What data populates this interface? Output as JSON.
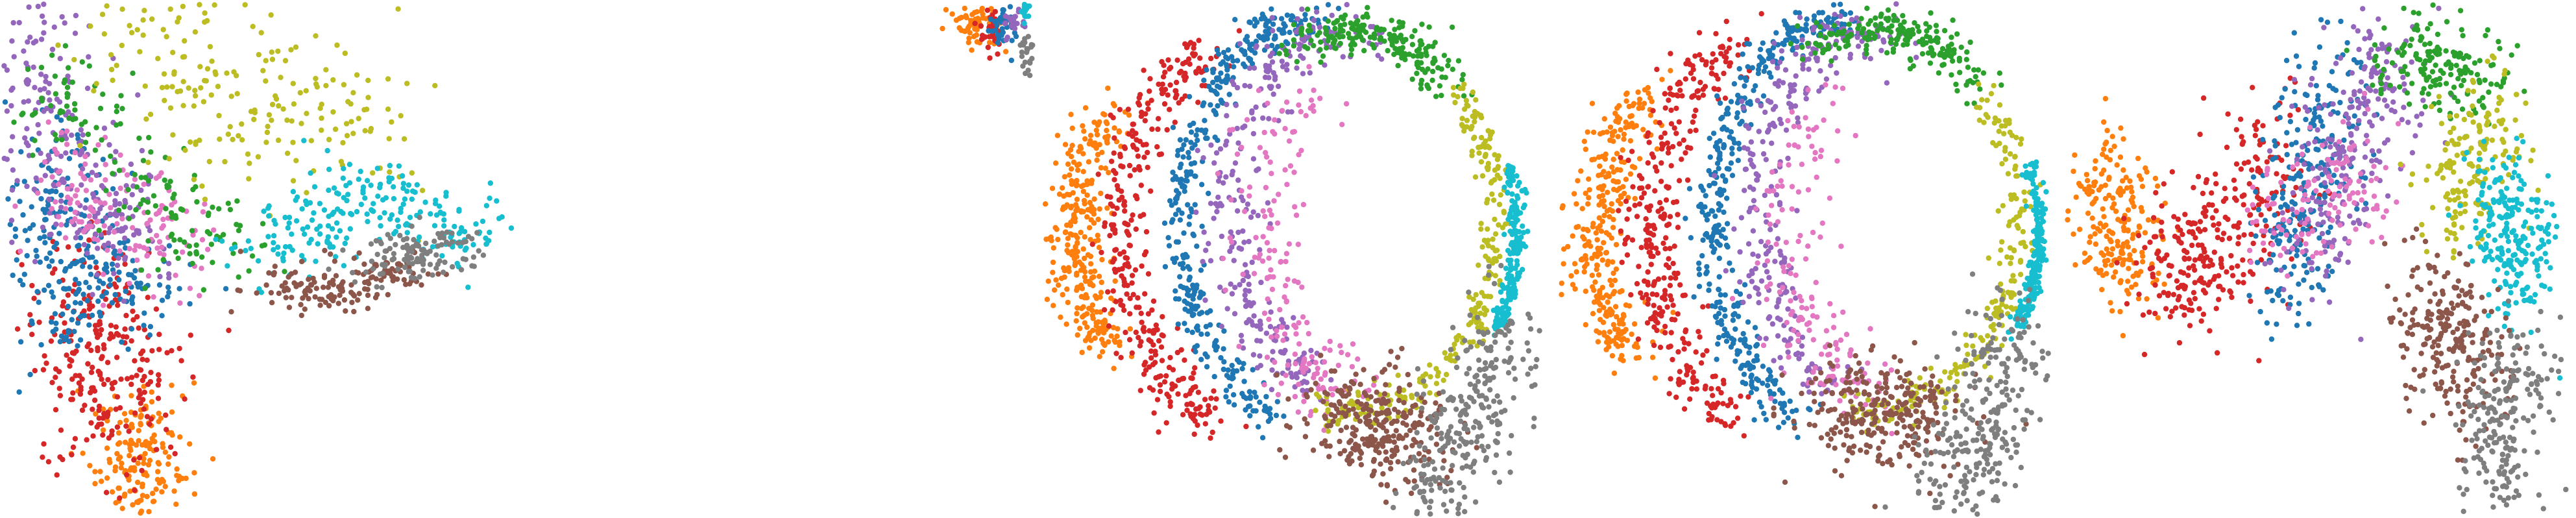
{
  "figure": {
    "panel_count": 5,
    "cluster_colors": [
      "#ff7f0e",
      "#d62728",
      "#1f77b4",
      "#9467bd",
      "#e377c2",
      "#2ca02c",
      "#bcbd22",
      "#17becf",
      "#8c564b",
      "#7f7f7f"
    ],
    "cluster_color_names": [
      "orange",
      "red",
      "blue",
      "purple",
      "pink",
      "green",
      "olive",
      "cyan",
      "brown",
      "gray"
    ],
    "axes_visible": false,
    "grid": false,
    "legend": "none"
  },
  "chart_data": [
    {
      "type": "scatter",
      "title": "",
      "xlabel": "",
      "ylabel": "",
      "xlim": [
        0,
        1
      ],
      "ylim": [
        0,
        1
      ],
      "description_shape": "three-armed fan",
      "series": [
        {
          "color": "#ff7f0e",
          "centers": [
            [
              0.27,
              0.1
            ]
          ],
          "count": 170,
          "spread": [
            0.05,
            0.07
          ]
        },
        {
          "color": "#d62728",
          "centers": [
            [
              0.2,
              0.22
            ],
            [
              0.14,
              0.4
            ],
            [
              0.22,
              0.32
            ]
          ],
          "count": 260,
          "spread": [
            0.06,
            0.08
          ]
        },
        {
          "color": "#1f77b4",
          "centers": [
            [
              0.12,
              0.45
            ],
            [
              0.22,
              0.46
            ],
            [
              0.1,
              0.62
            ]
          ],
          "count": 270,
          "spread": [
            0.06,
            0.07
          ]
        },
        {
          "color": "#9467bd",
          "centers": [
            [
              0.1,
              0.68
            ],
            [
              0.22,
              0.58
            ],
            [
              0.08,
              0.84
            ]
          ],
          "count": 240,
          "spread": [
            0.05,
            0.08
          ]
        },
        {
          "color": "#e377c2",
          "centers": [
            [
              0.16,
              0.64
            ],
            [
              0.3,
              0.56
            ]
          ],
          "count": 140,
          "spread": [
            0.05,
            0.06
          ]
        },
        {
          "color": "#2ca02c",
          "centers": [
            [
              0.14,
              0.8
            ],
            [
              0.28,
              0.64
            ],
            [
              0.4,
              0.52
            ]
          ],
          "count": 150,
          "spread": [
            0.06,
            0.05
          ]
        },
        {
          "color": "#bcbd22",
          "centers": [
            [
              0.42,
              0.82
            ],
            [
              0.6,
              0.78
            ],
            [
              0.3,
              0.94
            ]
          ],
          "count": 210,
          "spread": [
            0.1,
            0.09
          ]
        },
        {
          "color": "#17becf",
          "centers": [
            [
              0.72,
              0.62
            ],
            [
              0.86,
              0.56
            ],
            [
              0.58,
              0.55
            ]
          ],
          "count": 230,
          "spread": [
            0.07,
            0.04
          ]
        },
        {
          "color": "#8c564b",
          "centers": [
            [
              0.62,
              0.44
            ],
            [
              0.56,
              0.45
            ],
            [
              0.74,
              0.48
            ]
          ],
          "count": 150,
          "spread": [
            0.06,
            0.02
          ]
        },
        {
          "color": "#7f7f7f",
          "centers": [
            [
              0.76,
              0.5
            ],
            [
              0.84,
              0.52
            ]
          ],
          "count": 110,
          "spread": [
            0.05,
            0.025
          ]
        }
      ]
    },
    {
      "type": "scatter",
      "title": "",
      "xlabel": "",
      "ylabel": "",
      "xlim": [
        0,
        1
      ],
      "ylim": [
        0,
        1
      ],
      "description_shape": "mostly empty, small cluster corner top-right",
      "series": [
        {
          "color": "#ff7f0e",
          "centers": [
            [
              0.89,
              0.96
            ]
          ],
          "count": 70,
          "spread": [
            0.025,
            0.025
          ]
        },
        {
          "color": "#d62728",
          "centers": [
            [
              0.92,
              0.95
            ]
          ],
          "count": 35,
          "spread": [
            0.012,
            0.025
          ]
        },
        {
          "color": "#1f77b4",
          "centers": [
            [
              0.94,
              0.96
            ]
          ],
          "count": 35,
          "spread": [
            0.012,
            0.02
          ]
        },
        {
          "color": "#9467bd",
          "centers": [
            [
              0.96,
              0.97
            ]
          ],
          "count": 25,
          "spread": [
            0.01,
            0.015
          ]
        },
        {
          "color": "#17becf",
          "centers": [
            [
              0.985,
              0.985
            ]
          ],
          "count": 15,
          "spread": [
            0.006,
            0.01
          ]
        },
        {
          "color": "#7f7f7f",
          "centers": [
            [
              0.985,
              0.91
            ]
          ],
          "count": 25,
          "spread": [
            0.008,
            0.03
          ]
        }
      ]
    },
    {
      "type": "scatter",
      "title": "",
      "xlabel": "",
      "ylabel": "",
      "xlim": [
        0,
        1
      ],
      "ylim": [
        0,
        1
      ],
      "description_shape": "concentric rings",
      "series": [
        {
          "color": "#ff7f0e",
          "arc": [
            0.5,
            0.55,
            0.44,
            0.4,
            145,
            215
          ],
          "count": 300,
          "spread": [
            0.03,
            0.03
          ]
        },
        {
          "color": "#d62728",
          "arc": [
            0.5,
            0.55,
            0.34,
            0.42,
            120,
            240
          ],
          "count": 340,
          "spread": [
            0.025,
            0.03
          ]
        },
        {
          "color": "#1f77b4",
          "arc": [
            0.55,
            0.57,
            0.27,
            0.4,
            90,
            250
          ],
          "count": 380,
          "spread": [
            0.02,
            0.02
          ]
        },
        {
          "color": "#9467bd",
          "arc": [
            0.58,
            0.6,
            0.21,
            0.34,
            70,
            260
          ],
          "count": 280,
          "spread": [
            0.03,
            0.03
          ]
        },
        {
          "color": "#e377c2",
          "arc": [
            0.6,
            0.55,
            0.16,
            0.3,
            120,
            280
          ],
          "count": 180,
          "spread": [
            0.04,
            0.04
          ]
        },
        {
          "color": "#2ca02c",
          "arc": [
            0.62,
            0.65,
            0.24,
            0.3,
            40,
            120
          ],
          "count": 200,
          "spread": [
            0.03,
            0.02
          ]
        },
        {
          "color": "#bcbd22",
          "arc": [
            0.6,
            0.58,
            0.3,
            0.38,
            260,
            400
          ],
          "count": 240,
          "spread": [
            0.015,
            0.02
          ]
        },
        {
          "color": "#17becf",
          "arc": [
            0.6,
            0.55,
            0.34,
            0.38,
            330,
            380
          ],
          "count": 200,
          "spread": [
            0.008,
            0.012
          ]
        },
        {
          "color": "#8c564b",
          "centers": [
            [
              0.63,
              0.2
            ],
            [
              0.7,
              0.14
            ]
          ],
          "count": 280,
          "spread": [
            0.07,
            0.05
          ]
        },
        {
          "color": "#7f7f7f",
          "centers": [
            [
              0.83,
              0.16
            ],
            [
              0.9,
              0.3
            ],
            [
              0.78,
              0.06
            ]
          ],
          "count": 280,
          "spread": [
            0.05,
            0.07
          ]
        }
      ]
    },
    {
      "type": "scatter",
      "title": "",
      "xlabel": "",
      "ylabel": "",
      "xlim": [
        0,
        1
      ],
      "ylim": [
        0,
        1
      ],
      "description_shape": "concentric rings (variant)",
      "series": [
        {
          "color": "#ff7f0e",
          "arc": [
            0.52,
            0.55,
            0.44,
            0.42,
            140,
            215
          ],
          "count": 300,
          "spread": [
            0.03,
            0.03
          ]
        },
        {
          "color": "#d62728",
          "arc": [
            0.52,
            0.55,
            0.33,
            0.42,
            120,
            240
          ],
          "count": 340,
          "spread": [
            0.03,
            0.03
          ]
        },
        {
          "color": "#1f77b4",
          "arc": [
            0.57,
            0.57,
            0.26,
            0.4,
            90,
            250
          ],
          "count": 380,
          "spread": [
            0.02,
            0.02
          ]
        },
        {
          "color": "#9467bd",
          "arc": [
            0.6,
            0.6,
            0.2,
            0.34,
            70,
            260
          ],
          "count": 280,
          "spread": [
            0.03,
            0.03
          ]
        },
        {
          "color": "#e377c2",
          "arc": [
            0.62,
            0.55,
            0.15,
            0.3,
            120,
            280
          ],
          "count": 170,
          "spread": [
            0.04,
            0.04
          ]
        },
        {
          "color": "#2ca02c",
          "arc": [
            0.64,
            0.65,
            0.24,
            0.3,
            40,
            120
          ],
          "count": 200,
          "spread": [
            0.03,
            0.02
          ]
        },
        {
          "color": "#bcbd22",
          "arc": [
            0.62,
            0.58,
            0.3,
            0.38,
            260,
            400
          ],
          "count": 220,
          "spread": [
            0.015,
            0.02
          ]
        },
        {
          "color": "#17becf",
          "arc": [
            0.62,
            0.55,
            0.34,
            0.38,
            330,
            380
          ],
          "count": 200,
          "spread": [
            0.008,
            0.012
          ]
        },
        {
          "color": "#8c564b",
          "centers": [
            [
              0.62,
              0.22
            ],
            [
              0.68,
              0.18
            ]
          ],
          "count": 270,
          "spread": [
            0.07,
            0.05
          ]
        },
        {
          "color": "#7f7f7f",
          "centers": [
            [
              0.85,
              0.18
            ],
            [
              0.9,
              0.3
            ],
            [
              0.8,
              0.06
            ]
          ],
          "count": 280,
          "spread": [
            0.05,
            0.07
          ]
        }
      ]
    },
    {
      "type": "scatter",
      "title": "",
      "xlabel": "",
      "ylabel": "",
      "xlim": [
        0,
        1
      ],
      "ylim": [
        0,
        1
      ],
      "description_shape": "bow-tie / wing",
      "series": [
        {
          "color": "#ff7f0e",
          "centers": [
            [
              0.08,
              0.62
            ],
            [
              0.12,
              0.52
            ]
          ],
          "count": 200,
          "spread": [
            0.04,
            0.07
          ]
        },
        {
          "color": "#d62728",
          "centers": [
            [
              0.3,
              0.55
            ],
            [
              0.38,
              0.62
            ],
            [
              0.22,
              0.48
            ]
          ],
          "count": 300,
          "spread": [
            0.06,
            0.08
          ]
        },
        {
          "color": "#1f77b4",
          "centers": [
            [
              0.48,
              0.66
            ],
            [
              0.52,
              0.78
            ],
            [
              0.44,
              0.5
            ]
          ],
          "count": 260,
          "spread": [
            0.04,
            0.08
          ]
        },
        {
          "color": "#9467bd",
          "centers": [
            [
              0.56,
              0.72
            ],
            [
              0.62,
              0.86
            ],
            [
              0.5,
              0.58
            ]
          ],
          "count": 250,
          "spread": [
            0.05,
            0.08
          ]
        },
        {
          "color": "#e377c2",
          "centers": [
            [
              0.44,
              0.6
            ],
            [
              0.58,
              0.64
            ]
          ],
          "count": 120,
          "spread": [
            0.05,
            0.06
          ]
        },
        {
          "color": "#2ca02c",
          "centers": [
            [
              0.7,
              0.9
            ],
            [
              0.78,
              0.86
            ]
          ],
          "count": 170,
          "spread": [
            0.05,
            0.05
          ]
        },
        {
          "color": "#bcbd22",
          "centers": [
            [
              0.84,
              0.74
            ],
            [
              0.76,
              0.62
            ]
          ],
          "count": 170,
          "spread": [
            0.04,
            0.06
          ]
        },
        {
          "color": "#17becf",
          "centers": [
            [
              0.86,
              0.58
            ],
            [
              0.9,
              0.5
            ]
          ],
          "count": 230,
          "spread": [
            0.04,
            0.07
          ]
        },
        {
          "color": "#8c564b",
          "centers": [
            [
              0.76,
              0.36
            ],
            [
              0.8,
              0.26
            ],
            [
              0.72,
              0.4
            ]
          ],
          "count": 250,
          "spread": [
            0.05,
            0.07
          ]
        },
        {
          "color": "#7f7f7f",
          "centers": [
            [
              0.84,
              0.18
            ],
            [
              0.86,
              0.08
            ],
            [
              0.9,
              0.28
            ]
          ],
          "count": 220,
          "spread": [
            0.04,
            0.07
          ]
        }
      ]
    }
  ]
}
